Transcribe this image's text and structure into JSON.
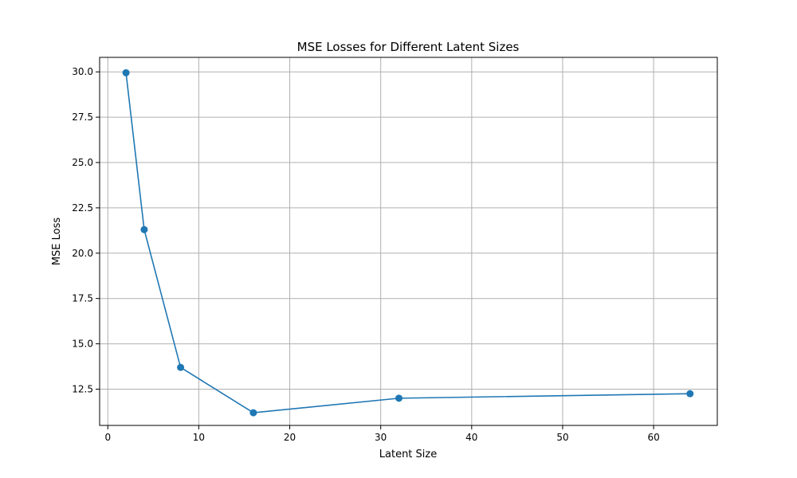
{
  "chart_data": {
    "type": "line",
    "title": "MSE Losses for Different Latent Sizes",
    "xlabel": "Latent Size",
    "ylabel": "MSE Loss",
    "xlim": [
      -0.9,
      67.0
    ],
    "ylim": [
      10.5,
      30.8
    ],
    "xticks": [
      0,
      10,
      20,
      30,
      40,
      50,
      60
    ],
    "xtick_labels": [
      "0",
      "10",
      "20",
      "30",
      "40",
      "50",
      "60"
    ],
    "yticks": [
      12.5,
      15.0,
      17.5,
      20.0,
      22.5,
      25.0,
      27.5,
      30.0
    ],
    "ytick_labels": [
      "12.5",
      "15.0",
      "17.5",
      "20.0",
      "22.5",
      "25.0",
      "27.5",
      "30.0"
    ],
    "grid": true,
    "series": [
      {
        "color": "#1f77b4",
        "marker": "circle",
        "x": [
          2,
          4,
          8,
          16,
          32,
          64
        ],
        "y": [
          29.95,
          21.3,
          13.7,
          11.2,
          12.0,
          12.25
        ]
      }
    ]
  }
}
